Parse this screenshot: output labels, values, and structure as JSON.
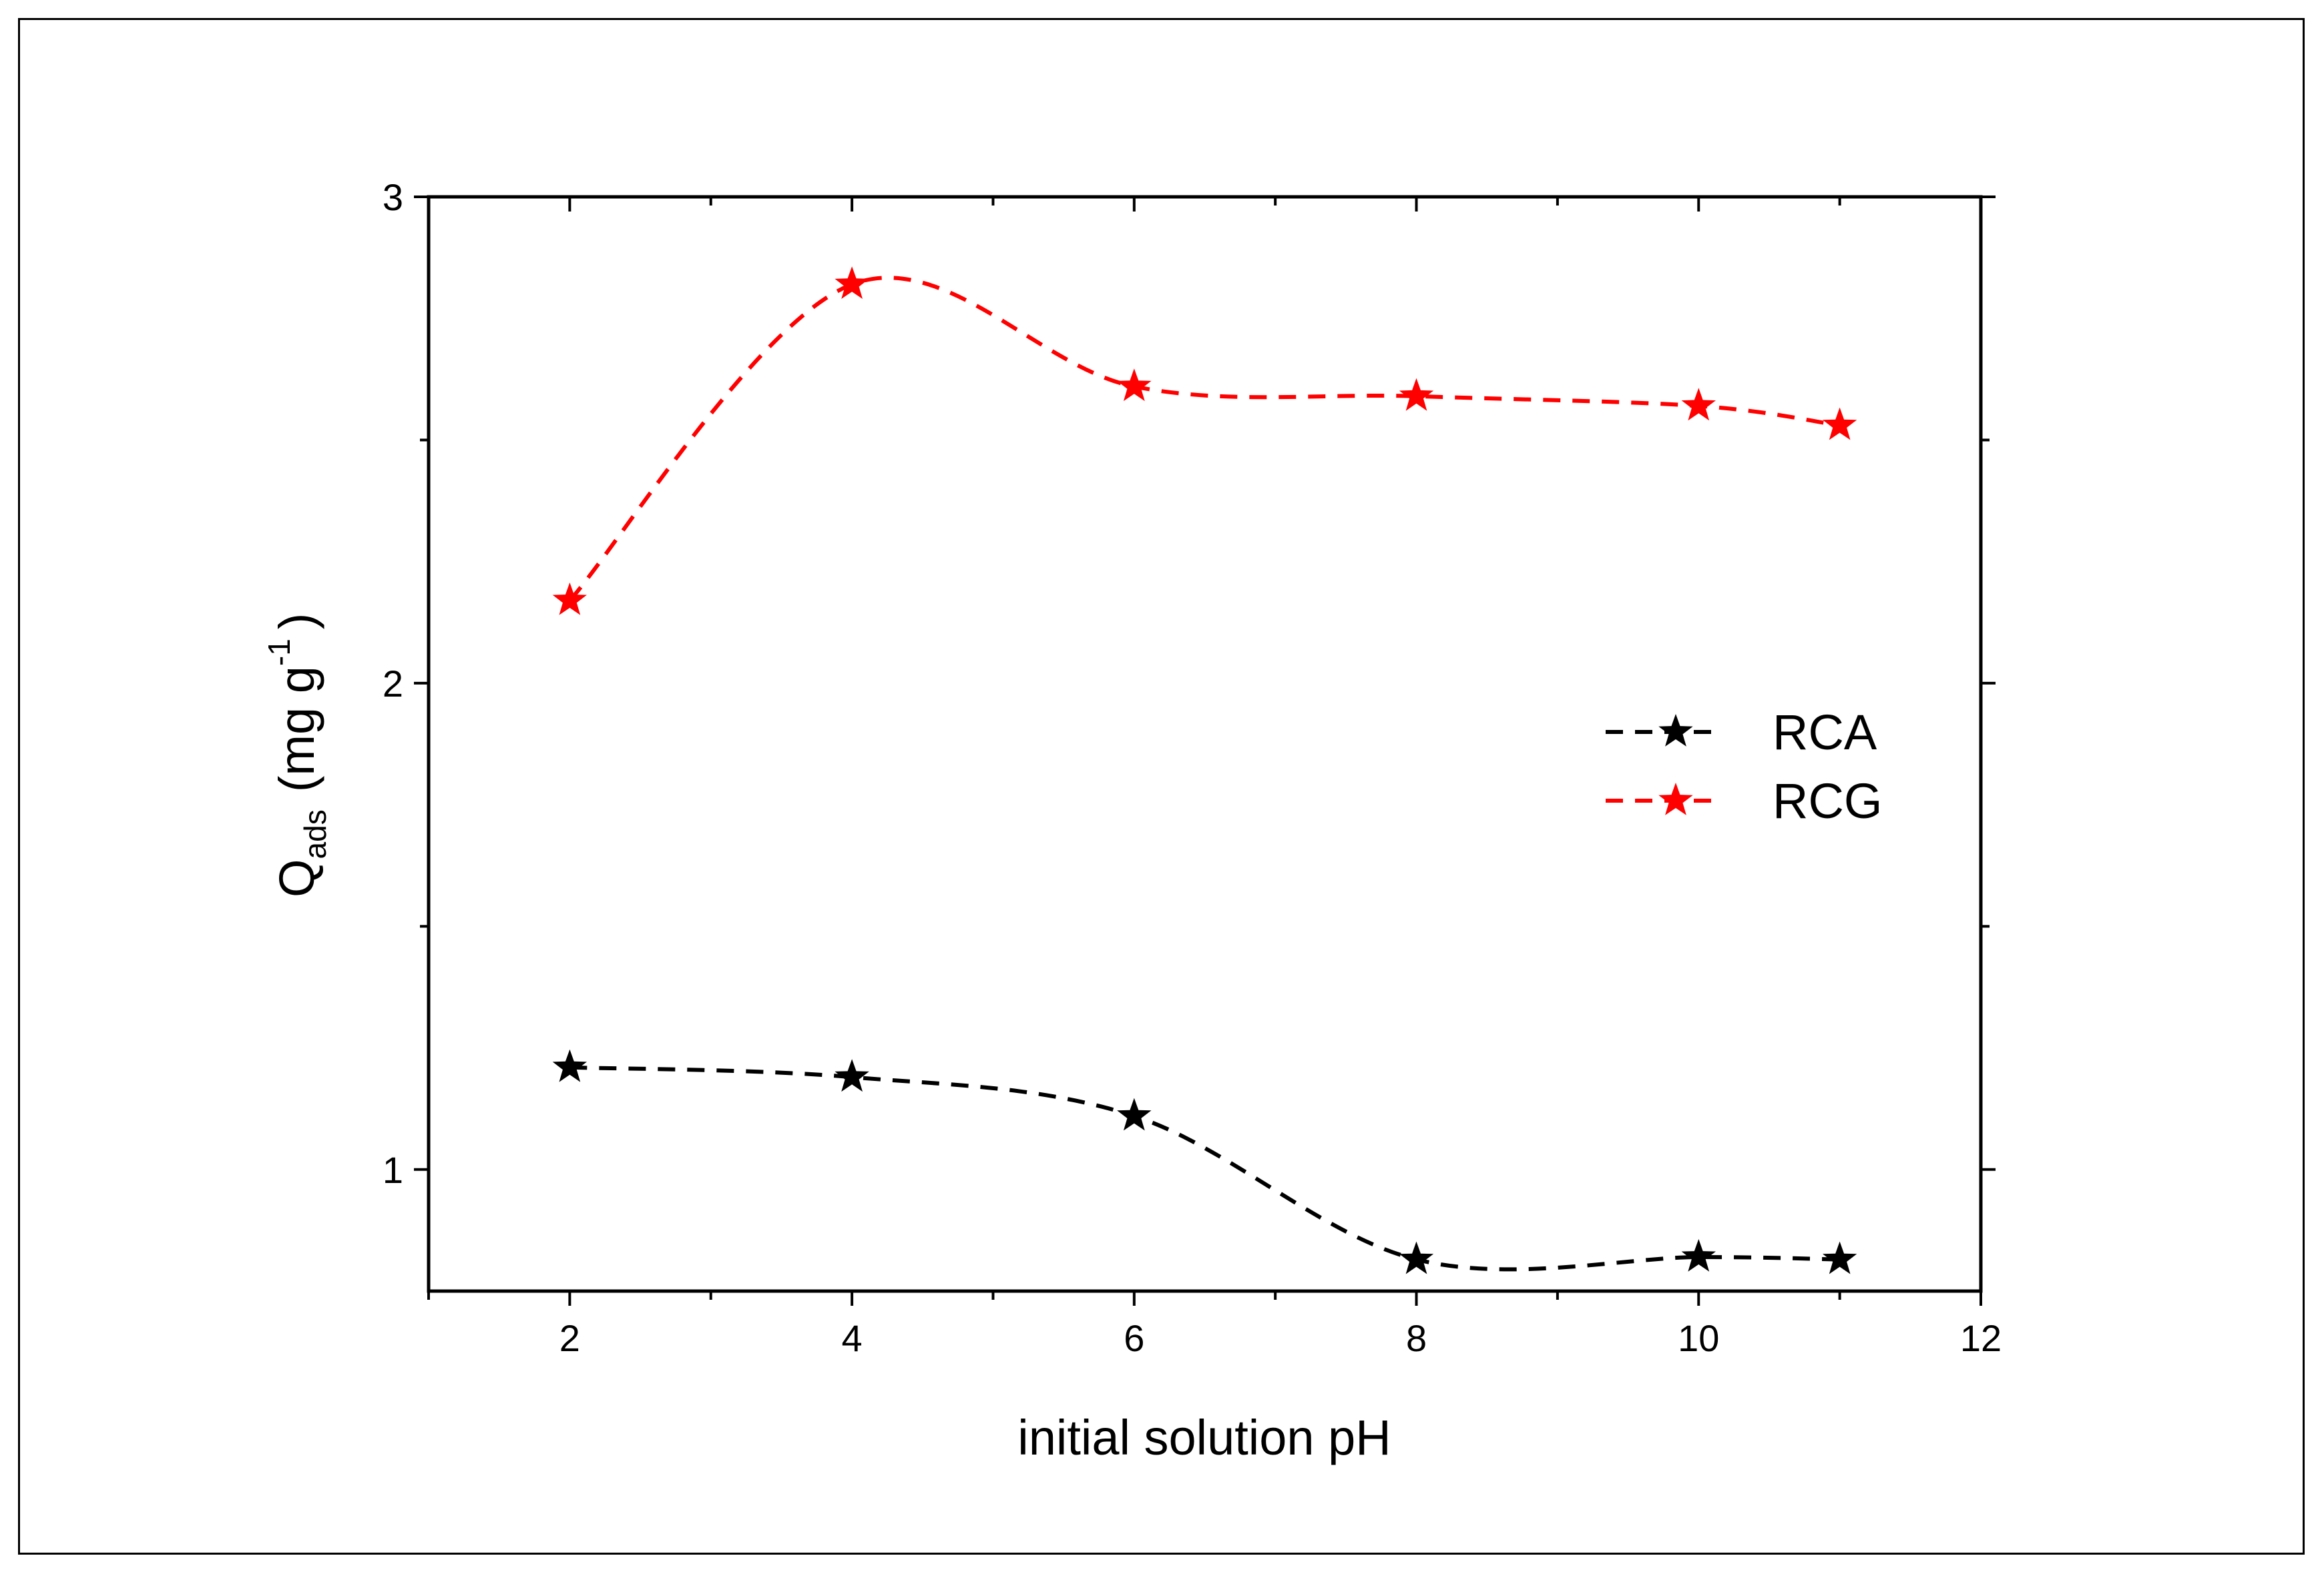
{
  "chart_data": {
    "type": "line",
    "title": "",
    "xlabel": "initial solution pH",
    "ylabel": {
      "main": "Q",
      "subscript": "ads",
      "units_open": "(mg g",
      "superscript": "-1",
      "units_close": ")"
    },
    "xlim": [
      1,
      12
    ],
    "ylim": [
      0.75,
      3.0
    ],
    "x_ticks": [
      2,
      4,
      6,
      8,
      10,
      12
    ],
    "x_tick_labels": [
      "2",
      "4",
      "6",
      "8",
      "10",
      "12"
    ],
    "y_ticks": [
      1,
      2,
      3
    ],
    "y_tick_labels": [
      "1",
      "2",
      "3"
    ],
    "grid": false,
    "legend_position": "right-middle",
    "x": [
      2,
      4,
      6,
      8,
      10,
      11
    ],
    "series": [
      {
        "name": "RCA",
        "color": "#000000",
        "marker": "star",
        "line_style": "dashed",
        "values": [
          1.21,
          1.19,
          1.11,
          0.815,
          0.82,
          0.815
        ]
      },
      {
        "name": "RCG",
        "color": "#ff0000",
        "marker": "star",
        "line_style": "dashed",
        "values": [
          2.17,
          2.82,
          2.61,
          2.59,
          2.57,
          2.53
        ]
      }
    ]
  }
}
